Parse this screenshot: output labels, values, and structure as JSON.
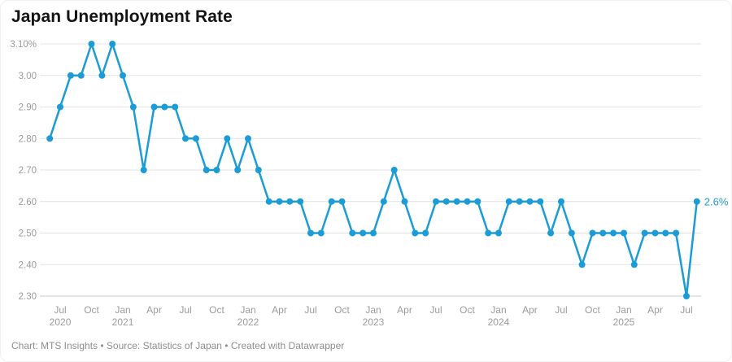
{
  "title": "Japan Unemployment Rate",
  "footer": {
    "text": "Chart: MTS Insights • Source: Statistics of Japan • Created with Datawrapper"
  },
  "colors": {
    "line": "#1b9cd6",
    "point": "#1b9cd6",
    "grid": "#e4e4e4",
    "baseline": "#c9c9c9",
    "axis_text": "#9b9b9b",
    "title_text": "#141414",
    "footer_text": "#8e8e8e",
    "background": "#ffffff",
    "value_label": "#1b9cd6"
  },
  "chart_data": {
    "type": "line",
    "title": "Japan Unemployment Rate",
    "unit": "%",
    "grid": "horizontal",
    "ylim": [
      2.3,
      3.1
    ],
    "yticks": [
      {
        "label": "3.10%",
        "value": 3.1
      },
      {
        "label": "3.00",
        "value": 3.0
      },
      {
        "label": "2.90",
        "value": 2.9
      },
      {
        "label": "2.80",
        "value": 2.8
      },
      {
        "label": "2.70",
        "value": 2.7
      },
      {
        "label": "2.60",
        "value": 2.6
      },
      {
        "label": "2.50",
        "value": 2.5
      },
      {
        "label": "2.40",
        "value": 2.4
      },
      {
        "label": "2.30",
        "value": 2.3
      }
    ],
    "xticks": [
      {
        "index": 1,
        "month": "Jul",
        "year": "2020"
      },
      {
        "index": 4,
        "month": "Oct"
      },
      {
        "index": 7,
        "month": "Jan",
        "year": "2021"
      },
      {
        "index": 10,
        "month": "Apr"
      },
      {
        "index": 13,
        "month": "Jul"
      },
      {
        "index": 16,
        "month": "Oct"
      },
      {
        "index": 19,
        "month": "Jan",
        "year": "2022"
      },
      {
        "index": 22,
        "month": "Apr"
      },
      {
        "index": 25,
        "month": "Jul"
      },
      {
        "index": 28,
        "month": "Oct"
      },
      {
        "index": 31,
        "month": "Jan",
        "year": "2023"
      },
      {
        "index": 34,
        "month": "Apr"
      },
      {
        "index": 37,
        "month": "Jul"
      },
      {
        "index": 40,
        "month": "Oct"
      },
      {
        "index": 43,
        "month": "Jan",
        "year": "2024"
      },
      {
        "index": 46,
        "month": "Apr"
      },
      {
        "index": 49,
        "month": "Jul"
      },
      {
        "index": 52,
        "month": "Oct"
      },
      {
        "index": 55,
        "month": "Jan",
        "year": "2025"
      },
      {
        "index": 58,
        "month": "Apr"
      },
      {
        "index": 61,
        "month": "Jul"
      }
    ],
    "x": [
      "Jun 2020",
      "Jul 2020",
      "Aug 2020",
      "Sep 2020",
      "Oct 2020",
      "Nov 2020",
      "Dec 2020",
      "Jan 2021",
      "Feb 2021",
      "Mar 2021",
      "Apr 2021",
      "May 2021",
      "Jun 2021",
      "Jul 2021",
      "Aug 2021",
      "Sep 2021",
      "Oct 2021",
      "Nov 2021",
      "Dec 2021",
      "Jan 2022",
      "Feb 2022",
      "Mar 2022",
      "Apr 2022",
      "May 2022",
      "Jun 2022",
      "Jul 2022",
      "Aug 2022",
      "Sep 2022",
      "Oct 2022",
      "Nov 2022",
      "Dec 2022",
      "Jan 2023",
      "Feb 2023",
      "Mar 2023",
      "Apr 2023",
      "May 2023",
      "Jun 2023",
      "Jul 2023",
      "Aug 2023",
      "Sep 2023",
      "Oct 2023",
      "Nov 2023",
      "Dec 2023",
      "Jan 2024",
      "Feb 2024",
      "Mar 2024",
      "Apr 2024",
      "May 2024",
      "Jun 2024",
      "Jul 2024",
      "Aug 2024",
      "Sep 2024",
      "Oct 2024",
      "Nov 2024",
      "Dec 2024",
      "Jan 2025",
      "Feb 2025",
      "Mar 2025",
      "Apr 2025",
      "May 2025",
      "Jun 2025",
      "Jul 2025",
      "Aug 2025"
    ],
    "values": [
      2.8,
      2.9,
      3.0,
      3.0,
      3.1,
      3.0,
      3.1,
      3.0,
      2.9,
      2.7,
      2.9,
      2.9,
      2.9,
      2.8,
      2.8,
      2.7,
      2.7,
      2.8,
      2.7,
      2.8,
      2.7,
      2.6,
      2.6,
      2.6,
      2.6,
      2.5,
      2.5,
      2.6,
      2.6,
      2.5,
      2.5,
      2.5,
      2.6,
      2.7,
      2.6,
      2.5,
      2.5,
      2.6,
      2.6,
      2.6,
      2.6,
      2.6,
      2.5,
      2.5,
      2.6,
      2.6,
      2.6,
      2.6,
      2.5,
      2.6,
      2.5,
      2.4,
      2.5,
      2.5,
      2.5,
      2.5,
      2.4,
      2.5,
      2.5,
      2.5,
      2.5,
      2.3,
      2.6
    ],
    "last_value_label": "2.6%",
    "legend": "none"
  }
}
